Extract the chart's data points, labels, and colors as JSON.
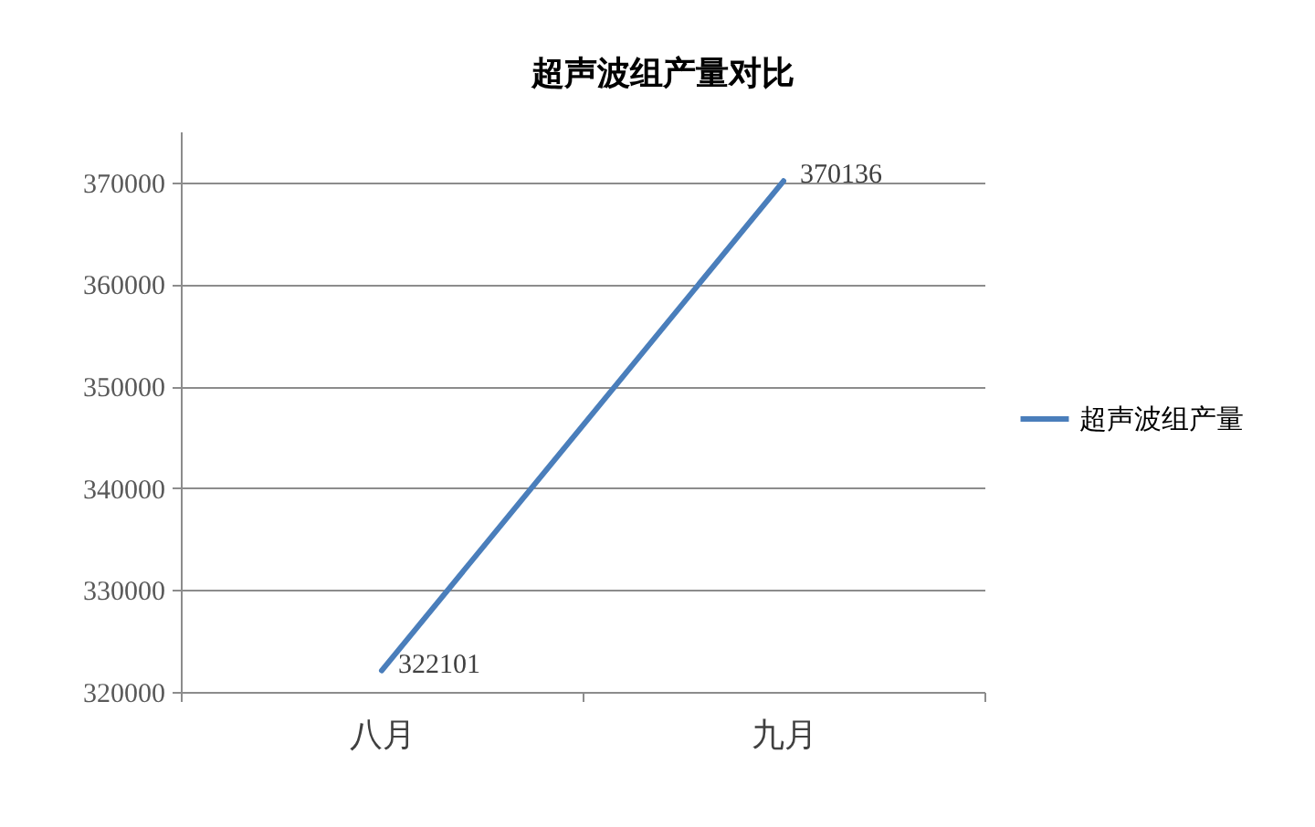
{
  "chart_data": {
    "type": "line",
    "title": "超声波组产量对比",
    "categories": [
      "八月",
      "九月"
    ],
    "series": [
      {
        "name": "超声波组产量",
        "color": "#4a7ebb",
        "values": [
          322101,
          370136
        ]
      }
    ],
    "ylim": [
      320000,
      375000
    ],
    "yticks": [
      320000,
      330000,
      340000,
      350000,
      360000,
      370000
    ],
    "grid": "y",
    "legend": "right",
    "data_labels": true
  }
}
